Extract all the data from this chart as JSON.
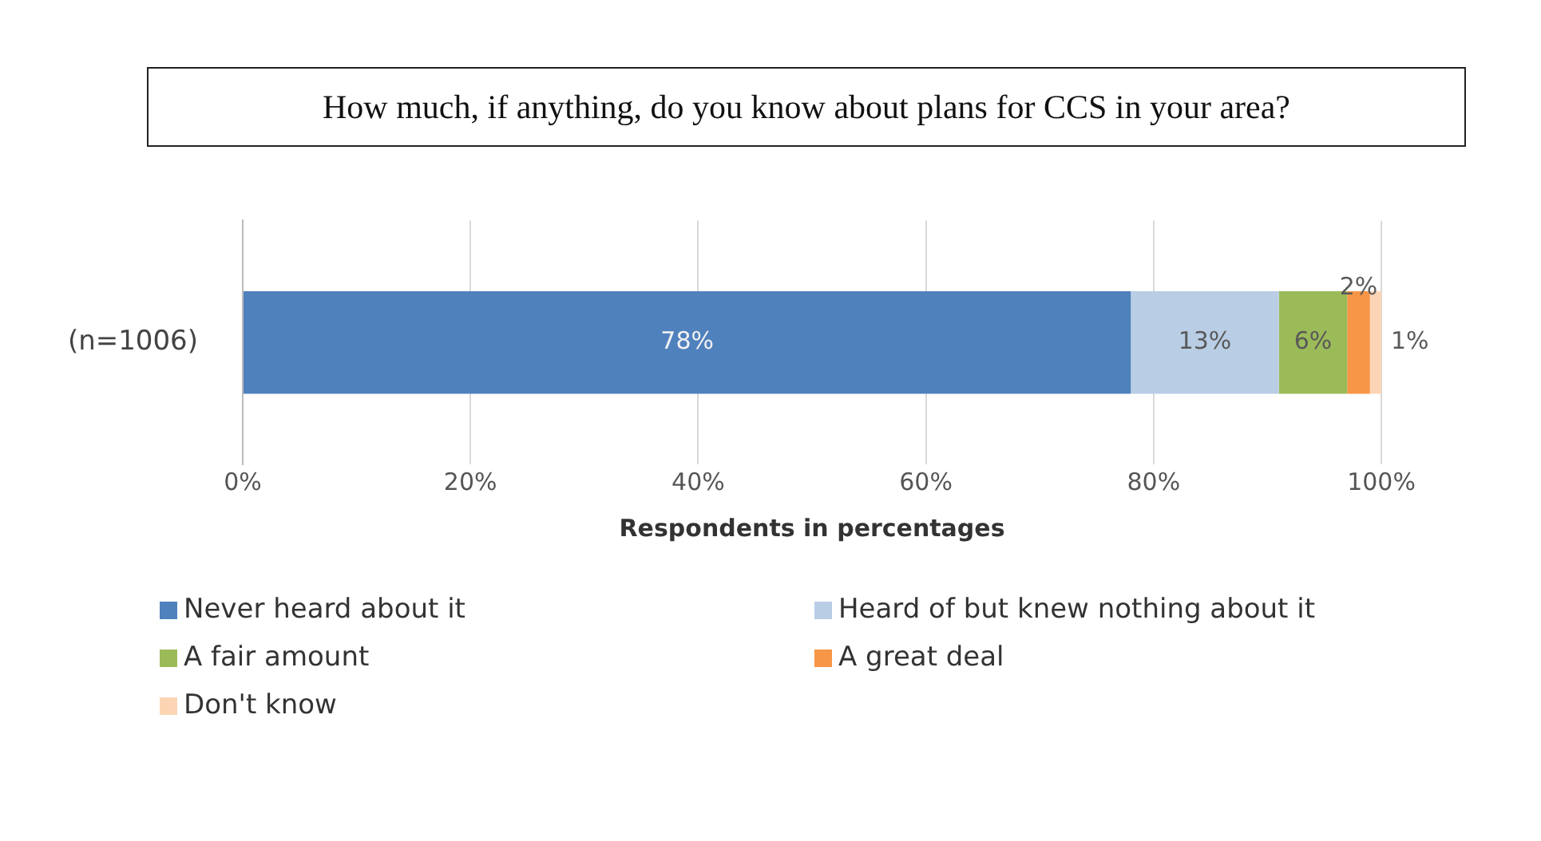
{
  "chart_data": {
    "type": "bar",
    "orientation": "horizontal",
    "stacked": true,
    "title": "How much, if anything, do you know about plans for CCS in your area?",
    "xlabel": "Respondents in percentages",
    "categories": [
      "(n=1006)"
    ],
    "series": [
      {
        "name": "Never heard about it",
        "color": "#4f81bd",
        "values": [
          78
        ],
        "value_labels": [
          "78%"
        ]
      },
      {
        "name": "Heard of but knew nothing about it",
        "color": "#b9cde5",
        "values": [
          13
        ],
        "value_labels": [
          "13%"
        ]
      },
      {
        "name": "A fair amount",
        "color": "#9bbb59",
        "values": [
          6
        ],
        "value_labels": [
          "6%"
        ]
      },
      {
        "name": "A great deal",
        "color": "#f79646",
        "values": [
          2
        ],
        "value_labels": [
          "2%"
        ]
      },
      {
        "name": "Don't know",
        "color": "#fcd5b5",
        "values": [
          1
        ],
        "value_labels": [
          "1%"
        ]
      }
    ],
    "xlim": [
      0,
      100
    ],
    "xticks": [
      {
        "value": 0,
        "label": "0%"
      },
      {
        "value": 20,
        "label": "20%"
      },
      {
        "value": 40,
        "label": "40%"
      },
      {
        "value": 60,
        "label": "60%"
      },
      {
        "value": 80,
        "label": "80%"
      },
      {
        "value": 100,
        "label": "100%"
      }
    ],
    "grid": "x",
    "legend": "bottom"
  }
}
